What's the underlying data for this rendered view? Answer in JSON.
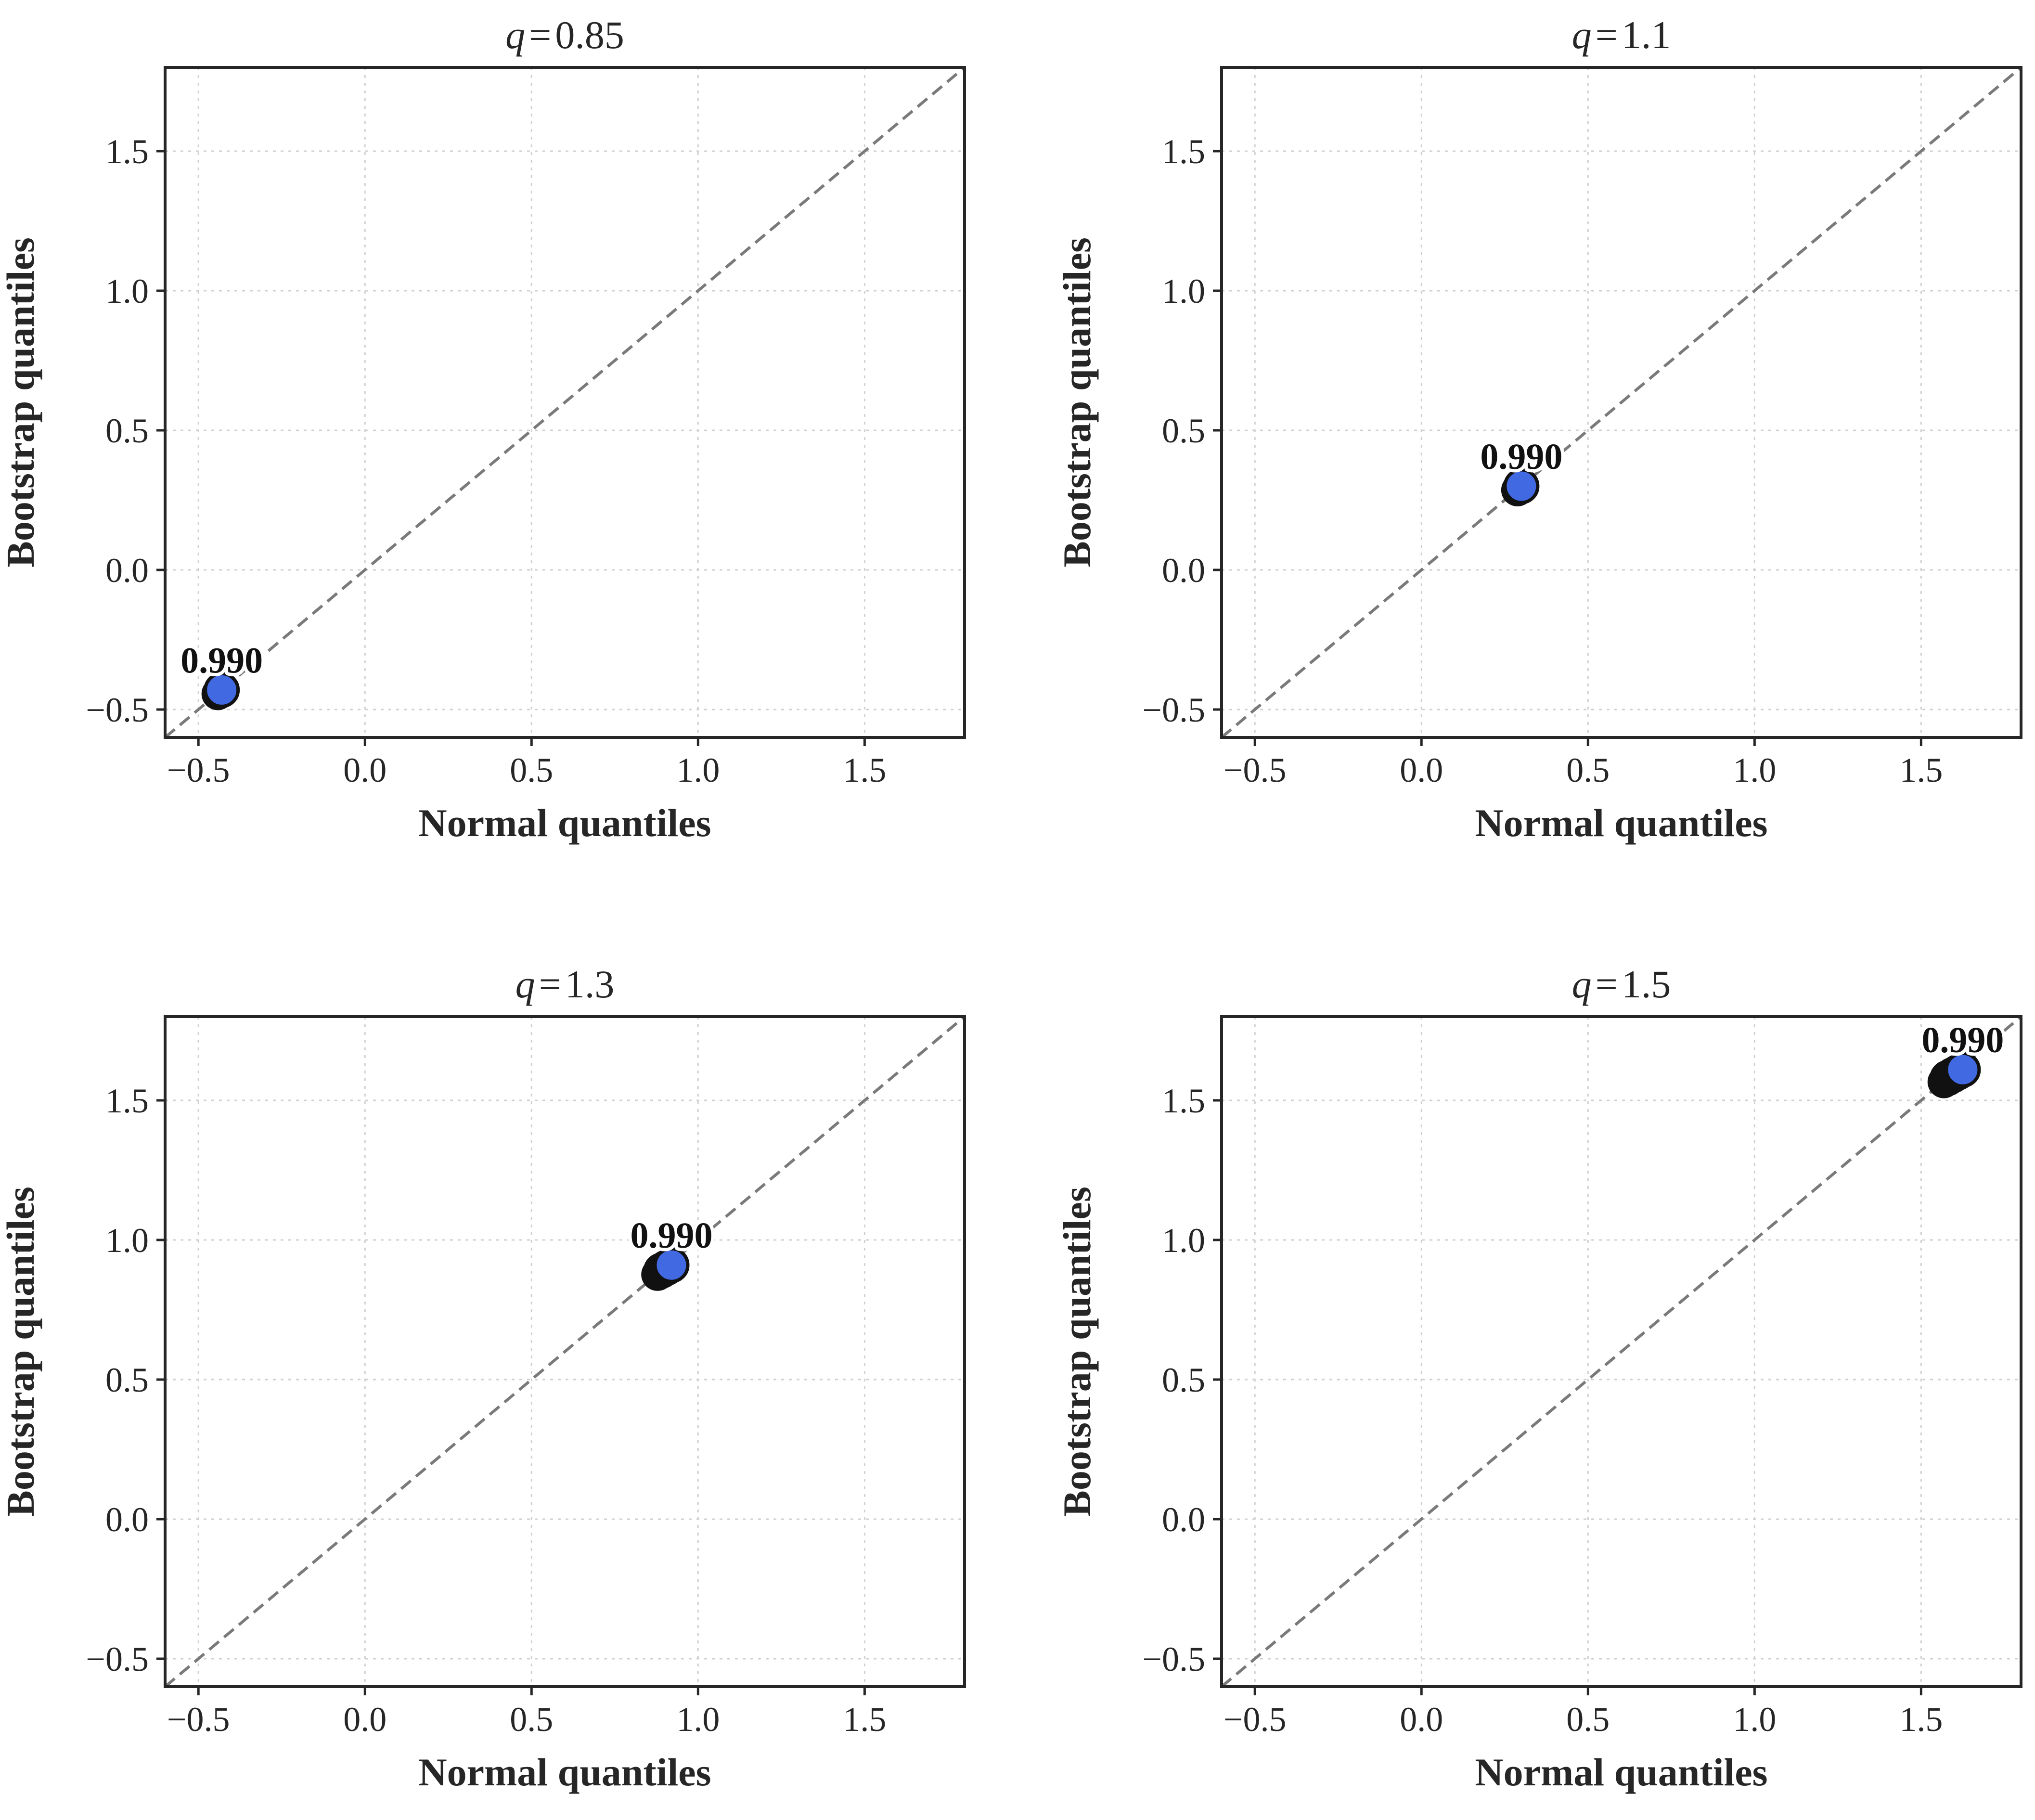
{
  "chart_data": [
    {
      "type": "scatter",
      "title_var": "q",
      "title_eq": "=",
      "title_value": "0.85",
      "xlabel": "Normal quantiles",
      "ylabel": "Bootstrap quantiles",
      "xlim": [
        -0.6,
        1.8
      ],
      "ylim": [
        -0.6,
        1.8
      ],
      "xticks": [
        -0.5,
        0.0,
        0.5,
        1.0,
        1.5
      ],
      "yticks": [
        -0.5,
        0.0,
        0.5,
        1.0,
        1.5
      ],
      "tick_labels": [
        "−0.5",
        "0.0",
        "0.5",
        "1.0",
        "1.5"
      ],
      "grid": true,
      "reference_line": "y = x",
      "points": [
        {
          "x": -0.43,
          "y": -0.43,
          "label": "0.990"
        }
      ]
    },
    {
      "type": "scatter",
      "title_var": "q",
      "title_eq": "=",
      "title_value": "1.1",
      "xlabel": "Normal quantiles",
      "ylabel": "Bootstrap quantiles",
      "xlim": [
        -0.6,
        1.8
      ],
      "ylim": [
        -0.6,
        1.8
      ],
      "xticks": [
        -0.5,
        0.0,
        0.5,
        1.0,
        1.5
      ],
      "yticks": [
        -0.5,
        0.0,
        0.5,
        1.0,
        1.5
      ],
      "tick_labels": [
        "−0.5",
        "0.0",
        "0.5",
        "1.0",
        "1.5"
      ],
      "grid": true,
      "reference_line": "y = x",
      "points": [
        {
          "x": 0.3,
          "y": 0.3,
          "label": "0.990"
        }
      ]
    },
    {
      "type": "scatter",
      "title_var": "q",
      "title_eq": "=",
      "title_value": "1.3",
      "xlabel": "Normal quantiles",
      "ylabel": "Bootstrap quantiles",
      "xlim": [
        -0.6,
        1.8
      ],
      "ylim": [
        -0.6,
        1.8
      ],
      "xticks": [
        -0.5,
        0.0,
        0.5,
        1.0,
        1.5
      ],
      "yticks": [
        -0.5,
        0.0,
        0.5,
        1.0,
        1.5
      ],
      "tick_labels": [
        "−0.5",
        "0.0",
        "0.5",
        "1.0",
        "1.5"
      ],
      "grid": true,
      "reference_line": "y = x",
      "points": [
        {
          "x": 0.89,
          "y": 0.89,
          "label": ""
        },
        {
          "x": 0.905,
          "y": 0.9,
          "label": ""
        },
        {
          "x": 0.92,
          "y": 0.91,
          "label": "0.990"
        }
      ]
    },
    {
      "type": "scatter",
      "title_var": "q",
      "title_eq": "=",
      "title_value": "1.5",
      "xlabel": "Normal quantiles",
      "ylabel": "Bootstrap quantiles",
      "xlim": [
        -0.6,
        1.8
      ],
      "ylim": [
        -0.6,
        1.8
      ],
      "xticks": [
        -0.5,
        0.0,
        0.5,
        1.0,
        1.5
      ],
      "yticks": [
        -0.5,
        0.0,
        0.5,
        1.0,
        1.5
      ],
      "tick_labels": [
        "−0.5",
        "0.0",
        "0.5",
        "1.0",
        "1.5"
      ],
      "grid": true,
      "reference_line": "y = x",
      "points": [
        {
          "x": 1.58,
          "y": 1.58,
          "label": ""
        },
        {
          "x": 1.595,
          "y": 1.59,
          "label": ""
        },
        {
          "x": 1.61,
          "y": 1.6,
          "label": ""
        },
        {
          "x": 1.625,
          "y": 1.61,
          "label": "0.990"
        }
      ]
    }
  ],
  "colors": {
    "point_fill": "#4169e1",
    "point_edge": "#111111",
    "reference_line": "#7a7a7a",
    "grid": "#d0d0d0",
    "frame": "#262626"
  }
}
